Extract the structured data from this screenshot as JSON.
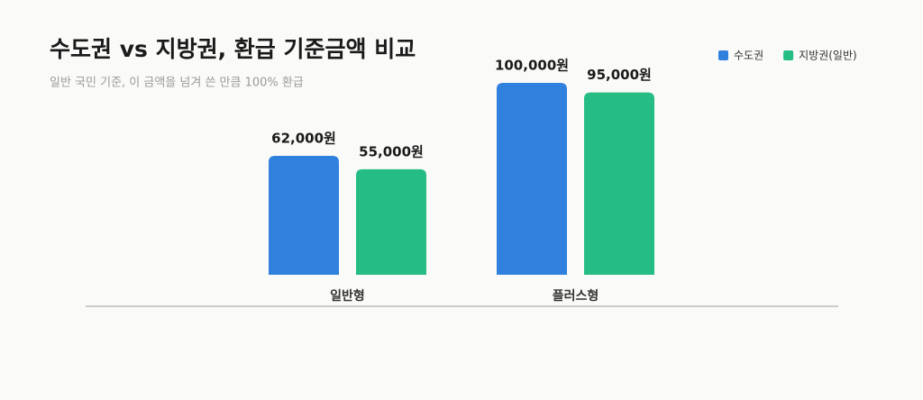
{
  "chart_data": {
    "type": "bar",
    "title": "수도권 vs 지방권, 환급 기준금액 비교",
    "subtitle": "일반 국민 기준, 이 금액을 넘겨 쓴 만큼 100% 환급",
    "categories": [
      "일반형",
      "플러스형"
    ],
    "series": [
      {
        "name": "수도권",
        "color": "#3080dd",
        "values": [
          62000,
          100000
        ],
        "value_labels": [
          "62,000원",
          "100,000원"
        ]
      },
      {
        "name": "지방권(일반)",
        "color": "#25bd84",
        "values": [
          55000,
          95000
        ],
        "value_labels": [
          "55,000원",
          "95,000원"
        ]
      }
    ],
    "ylim": [
      0,
      100000
    ],
    "legend": "top-right"
  }
}
